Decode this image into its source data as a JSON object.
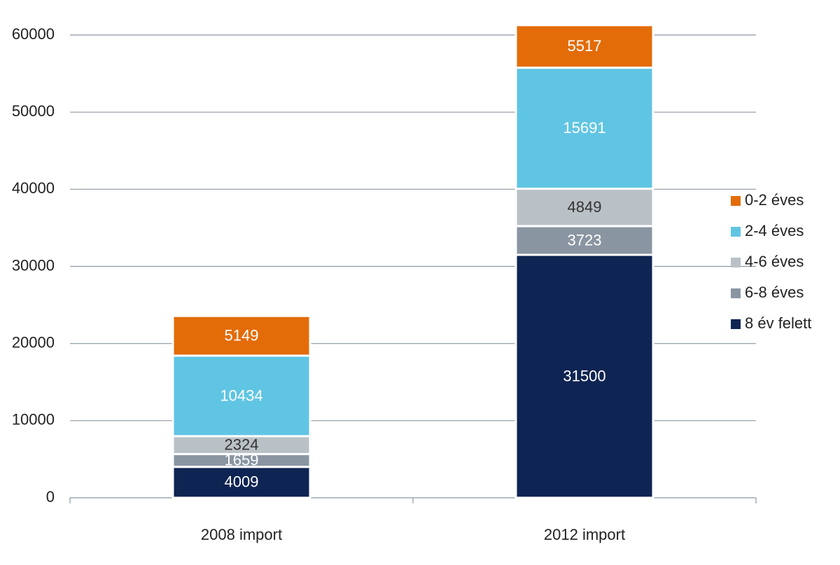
{
  "chart_data": {
    "type": "stacked-bar",
    "categories": [
      "2008 import",
      "2012 import"
    ],
    "series": [
      {
        "name": "8 év felett",
        "color": "#0e2452",
        "values": [
          4009,
          31500
        ]
      },
      {
        "name": "6-8 éves",
        "color": "#8a95a2",
        "values": [
          1659,
          3723
        ]
      },
      {
        "name": "4-6 éves",
        "color": "#bac1c6",
        "values": [
          2324,
          4849
        ]
      },
      {
        "name": "2-4 éves",
        "color": "#60c5e3",
        "values": [
          10434,
          15691
        ]
      },
      {
        "name": "0-2 éves",
        "color": "#e36c09",
        "values": [
          5149,
          5517
        ]
      }
    ],
    "ylim": [
      0,
      60000
    ],
    "yticks": [
      0,
      10000,
      20000,
      30000,
      40000,
      50000,
      60000
    ],
    "grid": true,
    "legend": "right"
  }
}
